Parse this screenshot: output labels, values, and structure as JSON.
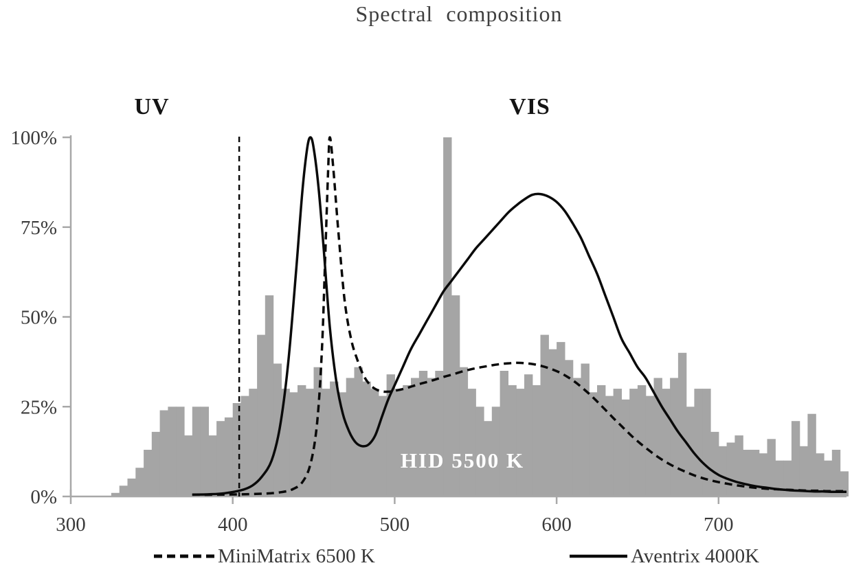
{
  "chart_data": {
    "type": "bar",
    "title": "Spectral composition",
    "xlabel": "",
    "ylabel": "",
    "xlim": [
      300,
      779
    ],
    "ylim": [
      0,
      100
    ],
    "x_ticks": [
      300,
      400,
      500,
      600,
      700
    ],
    "y_ticks": [
      {
        "value": 0,
        "label": "0%"
      },
      {
        "value": 25,
        "label": "25%"
      },
      {
        "value": 50,
        "label": "50%"
      },
      {
        "value": 75,
        "label": "75%"
      },
      {
        "value": 100,
        "label": "100%"
      }
    ],
    "annotations": {
      "uv": "UV",
      "vis": "VIS"
    },
    "uv_vis_boundary_nm": 404,
    "grid": "off",
    "legend_position": "bottom",
    "colors": {
      "bars": "#a5a5a5",
      "lines": "#0a0a0a",
      "axis": "#a8a8a8",
      "text": "#3a3a3a",
      "bar_label": "#ffffff"
    },
    "bars": {
      "name": "HID 5500 K",
      "bin_width_nm": 5,
      "x": [
        325,
        330,
        335,
        340,
        345,
        350,
        355,
        360,
        365,
        370,
        375,
        380,
        385,
        390,
        395,
        400,
        405,
        410,
        415,
        420,
        425,
        430,
        435,
        440,
        445,
        450,
        455,
        460,
        465,
        470,
        475,
        480,
        485,
        490,
        495,
        500,
        505,
        510,
        515,
        520,
        525,
        530,
        535,
        540,
        545,
        550,
        555,
        560,
        565,
        570,
        575,
        580,
        585,
        590,
        595,
        600,
        605,
        610,
        615,
        620,
        625,
        630,
        635,
        640,
        645,
        650,
        655,
        660,
        665,
        670,
        675,
        680,
        685,
        690,
        695,
        700,
        705,
        710,
        715,
        720,
        725,
        730,
        735,
        740,
        745,
        750,
        755,
        760,
        765,
        770,
        775
      ],
      "values": [
        1,
        3,
        5,
        8,
        13,
        18,
        24,
        25,
        25,
        17,
        25,
        25,
        17,
        21,
        22,
        26,
        28,
        30,
        45,
        56,
        37,
        30,
        29,
        31,
        30,
        36,
        30,
        32,
        29,
        33,
        36,
        32,
        30,
        28,
        34,
        30,
        31,
        33,
        35,
        33,
        35,
        100,
        56,
        36,
        30,
        25,
        21,
        25,
        35,
        31,
        30,
        34,
        31,
        45,
        41,
        43,
        38,
        33,
        37,
        29,
        31,
        28,
        30,
        27,
        30,
        31,
        28,
        33,
        30,
        33,
        40,
        25,
        30,
        30,
        18,
        14,
        15,
        17,
        13,
        13,
        12,
        16,
        10,
        10,
        21,
        14,
        23,
        12,
        10,
        13,
        7
      ]
    },
    "series": [
      {
        "name": "MiniMatrix 6500 K",
        "style": "dashed",
        "points": [
          [
            375,
            0.5
          ],
          [
            390,
            0.5
          ],
          [
            405,
            0.6
          ],
          [
            420,
            0.8
          ],
          [
            430,
            1.2
          ],
          [
            437,
            2
          ],
          [
            443,
            4
          ],
          [
            448,
            9
          ],
          [
            452,
            20
          ],
          [
            455,
            40
          ],
          [
            457,
            65
          ],
          [
            459,
            92
          ],
          [
            460,
            100
          ],
          [
            462,
            92
          ],
          [
            465,
            75
          ],
          [
            469,
            55
          ],
          [
            473,
            44
          ],
          [
            477,
            38
          ],
          [
            481,
            33.5
          ],
          [
            485,
            31
          ],
          [
            489,
            29.7
          ],
          [
            493,
            29.2
          ],
          [
            497,
            29.2
          ],
          [
            501,
            29.5
          ],
          [
            506,
            30
          ],
          [
            511,
            30.7
          ],
          [
            516,
            31.4
          ],
          [
            521,
            32
          ],
          [
            526,
            32.7
          ],
          [
            531,
            33.4
          ],
          [
            536,
            34
          ],
          [
            541,
            34.7
          ],
          [
            546,
            35.3
          ],
          [
            551,
            35.8
          ],
          [
            556,
            36.2
          ],
          [
            561,
            36.6
          ],
          [
            566,
            36.9
          ],
          [
            571,
            37.1
          ],
          [
            576,
            37.2
          ],
          [
            581,
            37.1
          ],
          [
            586,
            36.8
          ],
          [
            591,
            36.3
          ],
          [
            596,
            35.6
          ],
          [
            601,
            34.7
          ],
          [
            606,
            33.5
          ],
          [
            611,
            32
          ],
          [
            616,
            30.2
          ],
          [
            621,
            28.2
          ],
          [
            626,
            26
          ],
          [
            631,
            23.7
          ],
          [
            636,
            21.4
          ],
          [
            641,
            19.2
          ],
          [
            646,
            17
          ],
          [
            651,
            15
          ],
          [
            656,
            13.2
          ],
          [
            661,
            11.5
          ],
          [
            666,
            10
          ],
          [
            671,
            8.7
          ],
          [
            676,
            7.6
          ],
          [
            681,
            6.6
          ],
          [
            686,
            5.7
          ],
          [
            691,
            5
          ],
          [
            696,
            4.4
          ],
          [
            701,
            3.9
          ],
          [
            706,
            3.5
          ],
          [
            711,
            3.1
          ],
          [
            716,
            2.8
          ],
          [
            721,
            2.5
          ],
          [
            726,
            2.3
          ],
          [
            731,
            2.1
          ],
          [
            736,
            2
          ],
          [
            741,
            1.9
          ],
          [
            746,
            1.8
          ],
          [
            751,
            1.7
          ],
          [
            756,
            1.6
          ],
          [
            761,
            1.6
          ],
          [
            766,
            1.5
          ],
          [
            771,
            1.5
          ],
          [
            775,
            1.5
          ],
          [
            779,
            1.5
          ]
        ]
      },
      {
        "name": "Aventrix 4000K",
        "style": "solid",
        "points": [
          [
            375,
            0.5
          ],
          [
            385,
            0.6
          ],
          [
            395,
            0.9
          ],
          [
            405,
            1.7
          ],
          [
            412,
            3
          ],
          [
            418,
            5.5
          ],
          [
            424,
            10
          ],
          [
            429,
            19
          ],
          [
            434,
            36
          ],
          [
            439,
            62
          ],
          [
            443,
            85
          ],
          [
            446,
            97
          ],
          [
            448,
            100
          ],
          [
            450,
            97
          ],
          [
            453,
            86
          ],
          [
            456,
            70
          ],
          [
            460,
            47
          ],
          [
            464,
            32
          ],
          [
            468,
            23
          ],
          [
            472,
            18
          ],
          [
            476,
            15
          ],
          [
            480,
            14
          ],
          [
            484,
            14.5
          ],
          [
            488,
            17
          ],
          [
            492,
            22
          ],
          [
            496,
            27
          ],
          [
            500,
            31
          ],
          [
            505,
            36
          ],
          [
            510,
            41
          ],
          [
            515,
            45
          ],
          [
            520,
            49
          ],
          [
            525,
            53
          ],
          [
            530,
            57
          ],
          [
            535,
            60
          ],
          [
            540,
            63
          ],
          [
            545,
            66
          ],
          [
            550,
            69
          ],
          [
            555,
            71.5
          ],
          [
            560,
            74
          ],
          [
            565,
            76.5
          ],
          [
            570,
            79
          ],
          [
            575,
            81
          ],
          [
            580,
            82.7
          ],
          [
            585,
            84
          ],
          [
            590,
            84.2
          ],
          [
            595,
            83.5
          ],
          [
            600,
            82
          ],
          [
            605,
            79.5
          ],
          [
            610,
            76
          ],
          [
            615,
            72
          ],
          [
            620,
            67
          ],
          [
            625,
            62
          ],
          [
            630,
            56
          ],
          [
            635,
            50
          ],
          [
            640,
            44
          ],
          [
            645,
            40
          ],
          [
            650,
            36
          ],
          [
            655,
            33
          ],
          [
            660,
            29
          ],
          [
            665,
            25
          ],
          [
            670,
            21.5
          ],
          [
            675,
            18
          ],
          [
            680,
            15
          ],
          [
            685,
            12
          ],
          [
            690,
            9.5
          ],
          [
            695,
            7.5
          ],
          [
            700,
            6
          ],
          [
            705,
            5
          ],
          [
            710,
            4.2
          ],
          [
            715,
            3.6
          ],
          [
            720,
            3.1
          ],
          [
            725,
            2.7
          ],
          [
            730,
            2.4
          ],
          [
            735,
            2.1
          ],
          [
            740,
            1.9
          ],
          [
            745,
            1.7
          ],
          [
            750,
            1.6
          ],
          [
            755,
            1.5
          ],
          [
            760,
            1.4
          ],
          [
            765,
            1.4
          ],
          [
            770,
            1.3
          ],
          [
            775,
            1.3
          ],
          [
            779,
            1.3
          ]
        ]
      }
    ]
  }
}
